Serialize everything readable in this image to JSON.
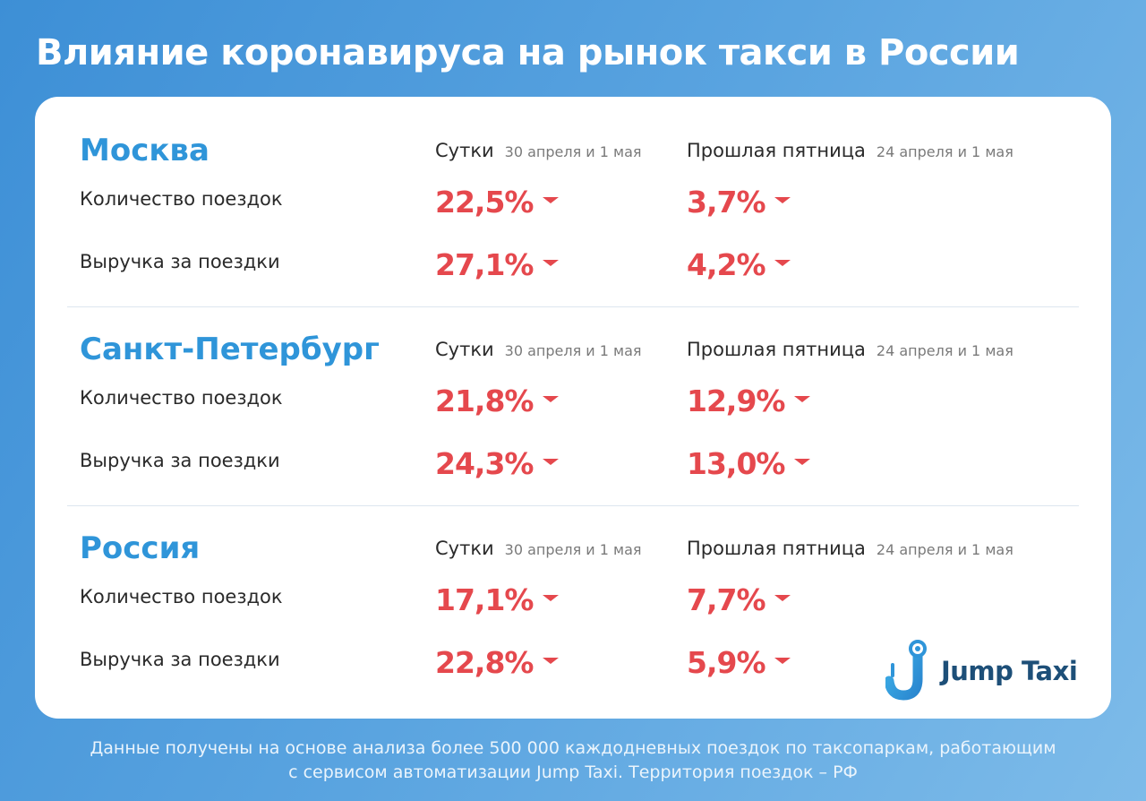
{
  "title": "Влияние коронавируса на рынок такси в России",
  "columns": {
    "day_label": "Сутки",
    "day_dates": "30 апреля и 1 мая",
    "friday_label": "Прошлая пятница",
    "friday_dates": "24 апреля и 1 мая"
  },
  "row_labels": {
    "trips": "Количество поездок",
    "revenue": "Выручка за поездки"
  },
  "sections": [
    {
      "region": "Москва",
      "trips_day": "22,5%",
      "trips_friday": "3,7%",
      "revenue_day": "27,1%",
      "revenue_friday": "4,2%"
    },
    {
      "region": "Санкт-Петербург",
      "trips_day": "21,8%",
      "trips_friday": "12,9%",
      "revenue_day": "24,3%",
      "revenue_friday": "13,0%"
    },
    {
      "region": "Россия",
      "trips_day": "17,1%",
      "trips_friday": "7,7%",
      "revenue_day": "22,8%",
      "revenue_friday": "5,9%"
    }
  ],
  "trend_icon": "triangle-down-icon",
  "logo": {
    "text": "Jump Taxi",
    "icon": "jump-taxi-logo-icon"
  },
  "footer": {
    "line1": "Данные получены на основе анализа более 500 000 каждодневных поездок по таксопаркам, работающим",
    "line2": "с сервисом автоматизации Jump Taxi. Территория поездок – РФ"
  },
  "colors": {
    "accent": "#2f95d9",
    "decline": "#e5484d",
    "brand_dark": "#1d4f78",
    "background": "#4a9bdc"
  }
}
